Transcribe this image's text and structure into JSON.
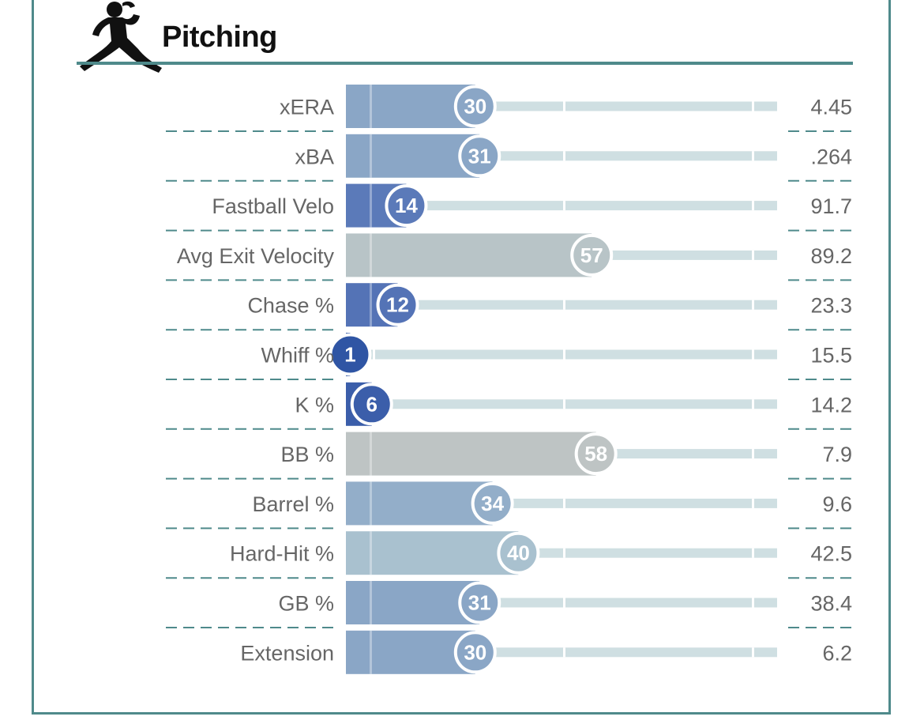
{
  "header": {
    "title": "Pitching",
    "icon": "pitcher-silhouette-icon"
  },
  "chart_data": {
    "type": "bar",
    "orientation": "horizontal",
    "title": "Pitching",
    "xlim": [
      0,
      100
    ],
    "rows": [
      {
        "metric": "xERA",
        "percentile": 30,
        "value": "4.45",
        "color": "#8aa6c6"
      },
      {
        "metric": "xBA",
        "percentile": 31,
        "value": ".264",
        "color": "#8aa6c6"
      },
      {
        "metric": "Fastball Velo",
        "percentile": 14,
        "value": "91.7",
        "color": "#5b7ab9"
      },
      {
        "metric": "Avg Exit Velocity",
        "percentile": 57,
        "value": "89.2",
        "color": "#b8c4c7"
      },
      {
        "metric": "Chase %",
        "percentile": 12,
        "value": "23.3",
        "color": "#5473b6"
      },
      {
        "metric": "Whiff %",
        "percentile": 1,
        "value": "15.5",
        "color": "#2f55a4"
      },
      {
        "metric": "K %",
        "percentile": 6,
        "value": "14.2",
        "color": "#3b5eaa"
      },
      {
        "metric": "BB %",
        "percentile": 58,
        "value": "7.9",
        "color": "#bec4c4"
      },
      {
        "metric": "Barrel %",
        "percentile": 34,
        "value": "9.6",
        "color": "#93aec9"
      },
      {
        "metric": "Hard-Hit %",
        "percentile": 40,
        "value": "42.5",
        "color": "#a9c1cf"
      },
      {
        "metric": "GB %",
        "percentile": 31,
        "value": "38.4",
        "color": "#8aa6c6"
      },
      {
        "metric": "Extension",
        "percentile": 30,
        "value": "6.2",
        "color": "#8aa6c6"
      }
    ]
  }
}
